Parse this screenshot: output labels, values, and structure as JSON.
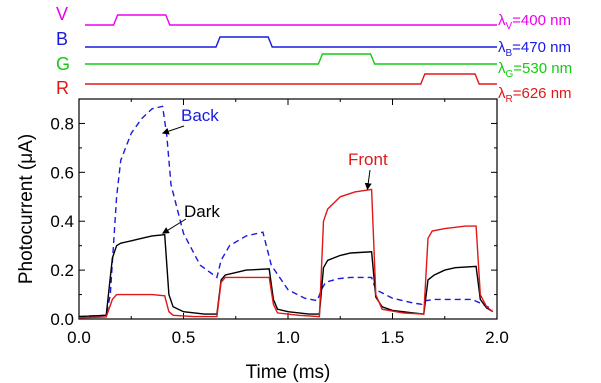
{
  "chart_data": {
    "type": "line",
    "xlabel": "Time (ms)",
    "ylabel": "Photocurrent (μA)",
    "xlim": [
      0.0,
      2.0
    ],
    "ylim": [
      0.0,
      0.9
    ],
    "xticks": [
      "0.0",
      "0.5",
      "1.0",
      "1.5",
      "2.0"
    ],
    "yticks": [
      "0.0",
      "0.2",
      "0.4",
      "0.6",
      "0.8"
    ],
    "grid": false,
    "colors": {
      "back": "#1a1ae0",
      "front": "#e01818",
      "dark": "#000000",
      "V": "#ee00ee",
      "B": "#1a1ae0",
      "G": "#11cc11",
      "R": "#e01818"
    },
    "channels": [
      {
        "letter": "V",
        "lambda_sub": "V",
        "lambda_value": "=400 nm",
        "on": [
          0.18,
          0.42
        ]
      },
      {
        "letter": "B",
        "lambda_sub": "B",
        "lambda_value": "=470 nm",
        "on": [
          0.67,
          0.91
        ]
      },
      {
        "letter": "G",
        "lambda_sub": "G",
        "lambda_value": "=530 nm",
        "on": [
          1.16,
          1.4
        ]
      },
      {
        "letter": "R",
        "lambda_sub": "R",
        "lambda_value": "=626 nm",
        "on": [
          1.65,
          1.9
        ]
      }
    ],
    "series": [
      {
        "name": "Back",
        "style": "dashed",
        "x": [
          0.0,
          0.13,
          0.15,
          0.18,
          0.2,
          0.25,
          0.3,
          0.35,
          0.4,
          0.42,
          0.44,
          0.5,
          0.58,
          0.66,
          0.68,
          0.72,
          0.8,
          0.88,
          0.92,
          1.0,
          1.08,
          1.14,
          1.16,
          1.18,
          1.24,
          1.3,
          1.4,
          1.42,
          1.5,
          1.6,
          1.64,
          1.66,
          1.7,
          1.8,
          1.88,
          1.92,
          1.98
        ],
        "y": [
          0.01,
          0.015,
          0.1,
          0.5,
          0.65,
          0.76,
          0.82,
          0.86,
          0.87,
          0.75,
          0.55,
          0.35,
          0.22,
          0.17,
          0.24,
          0.3,
          0.34,
          0.355,
          0.22,
          0.12,
          0.085,
          0.075,
          0.12,
          0.15,
          0.165,
          0.17,
          0.17,
          0.12,
          0.085,
          0.065,
          0.06,
          0.075,
          0.08,
          0.08,
          0.08,
          0.065,
          0.04
        ]
      },
      {
        "name": "Dark",
        "style": "solid",
        "x": [
          0.0,
          0.13,
          0.16,
          0.18,
          0.2,
          0.25,
          0.3,
          0.35,
          0.41,
          0.43,
          0.45,
          0.5,
          0.6,
          0.66,
          0.68,
          0.7,
          0.75,
          0.8,
          0.91,
          0.93,
          0.95,
          1.0,
          1.1,
          1.15,
          1.17,
          1.19,
          1.25,
          1.3,
          1.4,
          1.42,
          1.45,
          1.5,
          1.6,
          1.65,
          1.67,
          1.7,
          1.75,
          1.8,
          1.9,
          1.92,
          1.95,
          1.98
        ],
        "y": [
          0.01,
          0.015,
          0.25,
          0.3,
          0.31,
          0.32,
          0.33,
          0.34,
          0.345,
          0.1,
          0.05,
          0.03,
          0.02,
          0.02,
          0.16,
          0.18,
          0.19,
          0.2,
          0.205,
          0.08,
          0.04,
          0.03,
          0.02,
          0.02,
          0.21,
          0.24,
          0.26,
          0.27,
          0.275,
          0.09,
          0.05,
          0.035,
          0.025,
          0.02,
          0.16,
          0.18,
          0.2,
          0.21,
          0.215,
          0.08,
          0.045,
          0.03
        ]
      },
      {
        "name": "Front",
        "style": "solid",
        "x": [
          0.0,
          0.13,
          0.16,
          0.18,
          0.25,
          0.35,
          0.41,
          0.43,
          0.45,
          0.55,
          0.66,
          0.68,
          0.7,
          0.8,
          0.91,
          0.93,
          0.95,
          1.05,
          1.15,
          1.17,
          1.19,
          1.25,
          1.32,
          1.4,
          1.42,
          1.45,
          1.55,
          1.65,
          1.67,
          1.69,
          1.75,
          1.85,
          1.9,
          1.92,
          1.95,
          1.98
        ],
        "y": [
          0.005,
          0.008,
          0.08,
          0.1,
          0.1,
          0.1,
          0.095,
          0.03,
          0.015,
          0.01,
          0.01,
          0.15,
          0.17,
          0.17,
          0.17,
          0.06,
          0.025,
          0.015,
          0.01,
          0.4,
          0.45,
          0.5,
          0.52,
          0.53,
          0.1,
          0.04,
          0.025,
          0.02,
          0.33,
          0.36,
          0.37,
          0.38,
          0.38,
          0.1,
          0.05,
          0.03
        ]
      }
    ],
    "annotations": [
      {
        "text": "Back",
        "target_series": "Back",
        "target": [
          0.4,
          0.76
        ]
      },
      {
        "text": "Dark",
        "target_series": "Dark",
        "target": [
          0.4,
          0.35
        ]
      },
      {
        "text": "Front",
        "target_series": "Front",
        "target": [
          1.38,
          0.53
        ]
      }
    ]
  }
}
